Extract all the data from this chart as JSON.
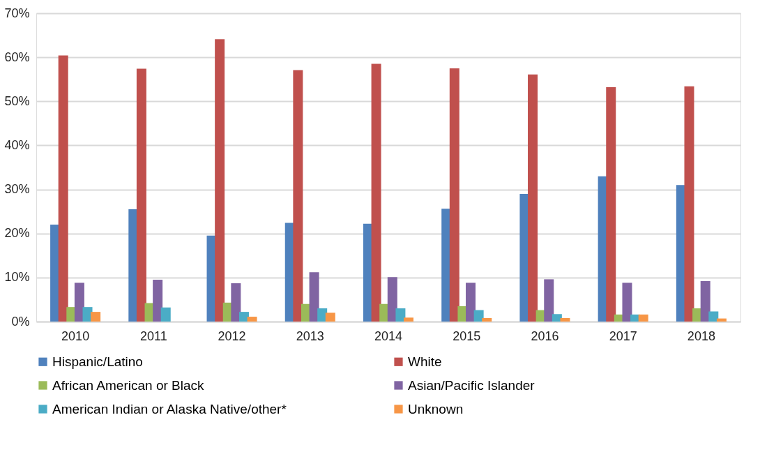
{
  "chart_data": {
    "type": "bar",
    "categories": [
      "2010",
      "2011",
      "2012",
      "2013",
      "2014",
      "2015",
      "2016",
      "2017",
      "2018"
    ],
    "series": [
      {
        "name": "Hispanic/Latino",
        "color": "#4f81bd",
        "values": [
          22,
          25.5,
          19.5,
          22.4,
          22.2,
          25.6,
          29,
          33,
          31
        ]
      },
      {
        "name": "White",
        "color": "#c0504d",
        "values": [
          60.4,
          57.4,
          64.1,
          57.1,
          58.5,
          57.5,
          56.1,
          53.2,
          53.4
        ]
      },
      {
        "name": "African American or Black",
        "color": "#9bbb59",
        "values": [
          3.3,
          4.2,
          4.3,
          4,
          4,
          3.5,
          2.6,
          1.6,
          3
        ]
      },
      {
        "name": "Asian/Pacific Islander",
        "color": "#8064a2",
        "values": [
          8.8,
          9.5,
          8.7,
          11.2,
          10.1,
          8.8,
          9.6,
          8.8,
          9.2
        ]
      },
      {
        "name": "American Indian or Alaska Native/other*",
        "color": "#4bacc6",
        "values": [
          3.3,
          3.2,
          2.2,
          3.0,
          3.0,
          2.6,
          1.7,
          1.6,
          2.3
        ]
      },
      {
        "name": "Unknown",
        "color": "#f79646",
        "values": [
          2.2,
          0,
          1.1,
          2.0,
          0.9,
          0.8,
          0.8,
          1.6,
          0.7
        ]
      }
    ],
    "ylim": [
      0,
      70
    ],
    "yticks": [
      {
        "value": 0,
        "label": "0%"
      },
      {
        "value": 10,
        "label": "10%"
      },
      {
        "value": 20,
        "label": "20%"
      },
      {
        "value": 30,
        "label": "30%"
      },
      {
        "value": 40,
        "label": "40%"
      },
      {
        "value": 50,
        "label": "50%"
      },
      {
        "value": 60,
        "label": "60%"
      },
      {
        "value": 70,
        "label": "70%"
      }
    ],
    "grid": "y",
    "legend": "bottom"
  }
}
